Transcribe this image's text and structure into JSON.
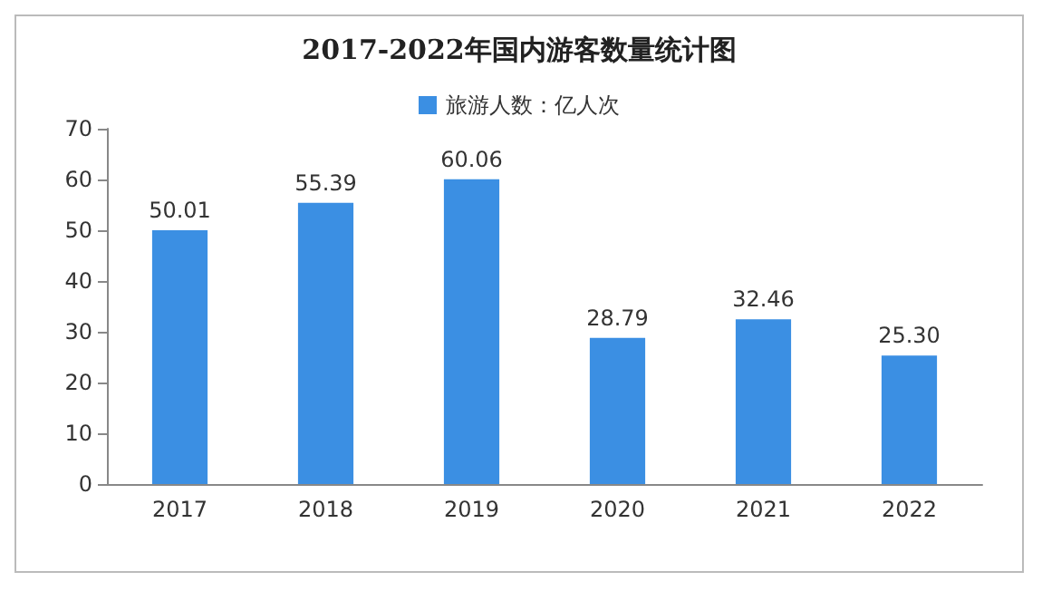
{
  "chart_data": {
    "type": "bar",
    "title": "2017-2022年国内游客数量统计图",
    "categories": [
      "2017",
      "2018",
      "2019",
      "2020",
      "2021",
      "2022"
    ],
    "series": [
      {
        "name": "旅游人数：亿人次",
        "color": "#3b8fe3",
        "values": [
          50.01,
          55.39,
          60.06,
          28.79,
          32.46,
          25.3
        ],
        "value_labels": [
          "50.01",
          "55.39",
          "60.06",
          "28.79",
          "32.46",
          "25.30"
        ]
      }
    ],
    "ylim": [
      0,
      70
    ],
    "yticks": [
      0,
      10,
      20,
      30,
      40,
      50,
      60,
      70
    ],
    "grid": false,
    "legend": "top"
  }
}
